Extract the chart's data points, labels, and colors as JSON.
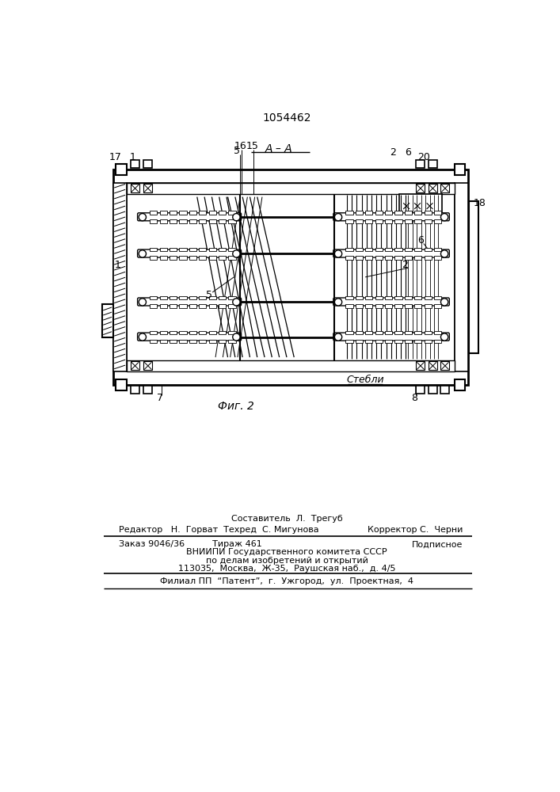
{
  "patent_number": "1054462",
  "section_label": "А – А",
  "fig_label": "Фиг. 2",
  "stems_label": "Стебли",
  "bg_color": "#ffffff",
  "line_color": "#000000",
  "footer": {
    "line1": "Составитель  Л.  Трегуб",
    "line2_left": "Редактор   Н.  Горват  Техред  С. Мигунова",
    "line2_right": "Корректор С.  Черни",
    "line3_left": "Заказ 9046/36          Тираж 461",
    "line3_right": "Подписное",
    "line4": "ВНИИПИ Государственного комитета СССР",
    "line5": "по делам изобретений и открытий",
    "line6": "113035,  Москва,  Ж-35,  Раушская наб.,  д. 4/5",
    "line7": "Филиал ПП  “Патент”,  г.  Ужгород,  ул.  Проектная,  4"
  }
}
